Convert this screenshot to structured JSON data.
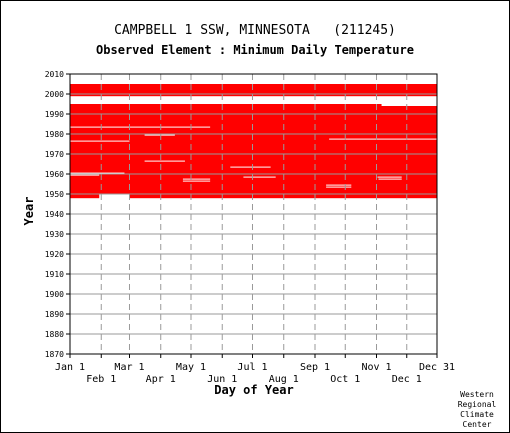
{
  "chart_data": {
    "type": "heatmap",
    "title": "CAMPBELL 1 SSW, MINNESOTA   (211245)",
    "subtitle": "Observed Element : Minimum Daily Temperature",
    "xlabel": "Day of Year",
    "ylabel": "Year",
    "ylim": [
      1870,
      2010
    ],
    "xlim": [
      1,
      365
    ],
    "y_ticks": [
      2010,
      2000,
      1990,
      1980,
      1970,
      1960,
      1950,
      1940,
      1930,
      1920,
      1910,
      1900,
      1890,
      1880,
      1870
    ],
    "x_ticks_top_row": [
      {
        "label": "Jan 1",
        "day": 1
      },
      {
        "label": "Mar 1",
        "day": 60
      },
      {
        "label": "May 1",
        "day": 121
      },
      {
        "label": "Jul 1",
        "day": 182
      },
      {
        "label": "Sep 1",
        "day": 244
      },
      {
        "label": "Nov 1",
        "day": 305
      },
      {
        "label": "Dec 31",
        "day": 365
      }
    ],
    "x_ticks_bottom_row": [
      {
        "label": "Feb 1",
        "day": 32
      },
      {
        "label": "Apr 1",
        "day": 91
      },
      {
        "label": "Jun 1",
        "day": 152
      },
      {
        "label": "Aug 1",
        "day": 213
      },
      {
        "label": "Oct 1",
        "day": 274
      },
      {
        "label": "Dec 1",
        "day": 335
      }
    ],
    "grid": true,
    "data_color": "#ff0000",
    "series": [
      {
        "years": [
          1948,
          1949
        ],
        "coverage": "partial",
        "spans": [
          [
            1,
            30
          ],
          [
            60,
            365
          ]
        ]
      },
      {
        "years": [
          1950,
          1965
        ],
        "coverage": "mostly-complete",
        "spans": [
          [
            1,
            365
          ]
        ],
        "gaps": [
          {
            "year": 1956,
            "days": [
              113,
              140
            ]
          },
          {
            "year": 1957,
            "days": [
              113,
              140
            ]
          },
          {
            "year": 1953,
            "days": [
              255,
              280
            ]
          },
          {
            "year": 1954,
            "days": [
              255,
              280
            ]
          },
          {
            "year": 1957,
            "days": [
              307,
              330
            ]
          },
          {
            "year": 1958,
            "days": [
              173,
              205
            ]
          },
          {
            "year": 1960,
            "days": [
              1,
              55
            ]
          },
          {
            "year": 1959,
            "days": [
              1,
              30
            ]
          },
          {
            "year": 1958,
            "days": [
              306,
              330
            ]
          },
          {
            "year": 1963,
            "days": [
              160,
              200
            ]
          }
        ]
      },
      {
        "years": [
          1966,
          1993
        ],
        "coverage": "complete",
        "spans": [
          [
            1,
            365
          ]
        ],
        "gaps": [
          {
            "year": 1966,
            "days": [
              75,
              115
            ]
          },
          {
            "year": 1979,
            "days": [
              75,
              105
            ]
          },
          {
            "year": 1977,
            "days": [
              258,
              365
            ]
          },
          {
            "year": 1983,
            "days": [
              1,
              140
            ]
          },
          {
            "year": 1976,
            "days": [
              1,
              60
            ]
          }
        ]
      },
      {
        "years": [
          1994,
          1994
        ],
        "coverage": "partial",
        "spans": [
          [
            1,
            310
          ]
        ]
      },
      {
        "years": [
          1996,
          1998
        ],
        "coverage": "none",
        "spans": []
      },
      {
        "years": [
          1999,
          2004
        ],
        "coverage": "complete",
        "spans": [
          [
            1,
            365
          ]
        ]
      }
    ]
  },
  "credit": [
    "Western",
    "Regional",
    "Climate",
    "Center"
  ]
}
